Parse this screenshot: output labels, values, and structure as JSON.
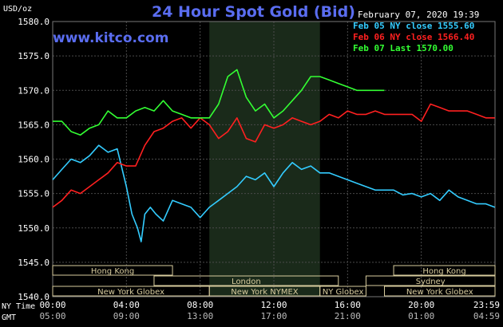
{
  "header": {
    "title": "24 Hour Spot Gold (Bid)",
    "site": "www.kitco.com",
    "unit": "USD/oz",
    "date": "February 07, 2020 19:39"
  },
  "legend": [
    {
      "label": "Feb 05 NY close 1555.60",
      "color": "#33ccff"
    },
    {
      "label": "Feb 06 NY close 1566.40",
      "color": "#ff2020"
    },
    {
      "label": "Feb 07 Last 1570.00",
      "color": "#33ff33"
    }
  ],
  "axis_labels": {
    "ny_time": "NY Time",
    "gmt": "GMT"
  },
  "sessions": [
    {
      "name": "Hong Kong",
      "start": 0,
      "end": 6.5,
      "row": 0
    },
    {
      "name": "London",
      "start": 5.5,
      "end": 15.5,
      "row": 1
    },
    {
      "name": "New York Globex",
      "start": 0,
      "end": 8.5,
      "row": 2
    },
    {
      "name": "New York NYMEX",
      "start": 8.5,
      "end": 14.5,
      "row": 2
    },
    {
      "name": "NY Globex",
      "start": 14.5,
      "end": 17,
      "row": 2
    },
    {
      "name": "Hong Kong",
      "start": 18.5,
      "end": 24,
      "row": 0
    },
    {
      "name": "Sydney",
      "start": 17,
      "end": 24,
      "row": 1
    },
    {
      "name": "New York Globex",
      "start": 18,
      "end": 24,
      "row": 2
    }
  ],
  "colors": {
    "background": "#000000",
    "grid": "#4a4a4a",
    "highlight": "#1a2a1a",
    "session_box": "#d8cc9e",
    "session_text": "#000000"
  },
  "chart_data": {
    "type": "line",
    "ylim": [
      1540,
      1580
    ],
    "yticks": [
      "1540.0",
      "1545.0",
      "1550.0",
      "1555.0",
      "1560.0",
      "1565.0",
      "1570.0",
      "1575.0",
      "1580.0"
    ],
    "xlim": [
      0,
      24
    ],
    "xticks_ny": [
      "00:00",
      "04:00",
      "08:00",
      "12:00",
      "16:00",
      "20:00",
      "23:59"
    ],
    "xticks_gmt": [
      "05:00",
      "09:00",
      "13:00",
      "17:00",
      "21:00",
      "01:00",
      "04:59"
    ],
    "highlight_range": [
      8.5,
      14.5
    ],
    "series": [
      {
        "name": "Feb 05 NY close 1555.60",
        "color": "#33ccff",
        "x": [
          0,
          0.5,
          1,
          1.5,
          2,
          2.5,
          3,
          3.5,
          4,
          4.3,
          4.6,
          4.8,
          5,
          5.3,
          5.6,
          6,
          6.5,
          7,
          7.5,
          8,
          8.5,
          9,
          9.5,
          10,
          10.5,
          11,
          11.5,
          12,
          12.5,
          13,
          13.5,
          14,
          14.5,
          15,
          15.5,
          16,
          16.5,
          17,
          17.5,
          18,
          18.5,
          19,
          19.5,
          20,
          20.5,
          21,
          21.5,
          22,
          22.5,
          23,
          23.5,
          23.99
        ],
        "y": [
          1557,
          1558.5,
          1560,
          1559.5,
          1560.5,
          1562,
          1561,
          1561.5,
          1556,
          1552,
          1550,
          1548,
          1552,
          1553,
          1552,
          1551,
          1554,
          1553.5,
          1553,
          1551.5,
          1553,
          1554,
          1555,
          1556,
          1557.5,
          1557,
          1558,
          1556,
          1558,
          1559.5,
          1558.5,
          1559,
          1558,
          1558,
          1557.5,
          1557,
          1556.5,
          1556,
          1555.5,
          1555.5,
          1555.5,
          1554.8,
          1555,
          1554.5,
          1555,
          1554,
          1555.5,
          1554.5,
          1554,
          1553.5,
          1553.5,
          1553
        ]
      },
      {
        "name": "Feb 06 NY close 1566.40",
        "color": "#ff2020",
        "x": [
          0,
          0.5,
          1,
          1.5,
          2,
          2.5,
          3,
          3.5,
          4,
          4.5,
          5,
          5.5,
          6,
          6.5,
          7,
          7.5,
          8,
          8.5,
          9,
          9.5,
          10,
          10.5,
          11,
          11.5,
          12,
          12.5,
          13,
          13.5,
          14,
          14.5,
          15,
          15.5,
          16,
          16.5,
          17,
          17.5,
          18,
          18.5,
          19,
          19.5,
          20,
          20.5,
          21,
          21.5,
          22,
          22.5,
          23,
          23.5,
          23.99
        ],
        "y": [
          1553,
          1554,
          1555.5,
          1555,
          1556,
          1557,
          1558,
          1559.5,
          1559,
          1559,
          1562,
          1564,
          1564.5,
          1565.5,
          1566,
          1564.5,
          1566,
          1565,
          1563,
          1564,
          1566,
          1563,
          1562.5,
          1565,
          1564.5,
          1565,
          1566,
          1565.5,
          1565,
          1565.5,
          1566.5,
          1566,
          1567,
          1566.5,
          1566.5,
          1567,
          1566.5,
          1566.5,
          1566.5,
          1566.5,
          1565.5,
          1568,
          1567.5,
          1567,
          1567,
          1567,
          1566.5,
          1566,
          1566
        ]
      },
      {
        "name": "Feb 07 Last 1570.00",
        "color": "#33ff33",
        "x": [
          0,
          0.5,
          1,
          1.5,
          2,
          2.5,
          3,
          3.5,
          4,
          4.5,
          5,
          5.5,
          6,
          6.5,
          7,
          7.5,
          8,
          8.5,
          9,
          9.5,
          10,
          10.5,
          11,
          11.5,
          12,
          12.5,
          13,
          13.5,
          14,
          14.5,
          15,
          15.5,
          16,
          16.5,
          17,
          17.5,
          18
        ],
        "y": [
          1565.5,
          1565.5,
          1564,
          1563.5,
          1564.5,
          1565,
          1567,
          1566,
          1566,
          1567,
          1567.5,
          1567,
          1568.5,
          1567,
          1566.5,
          1566,
          1566,
          1566,
          1568,
          1572,
          1573,
          1569,
          1567,
          1568,
          1566,
          1567,
          1568.5,
          1570,
          1572,
          1572,
          1571.5,
          1571,
          1570.5,
          1570,
          1570,
          1570,
          1570
        ]
      }
    ]
  }
}
